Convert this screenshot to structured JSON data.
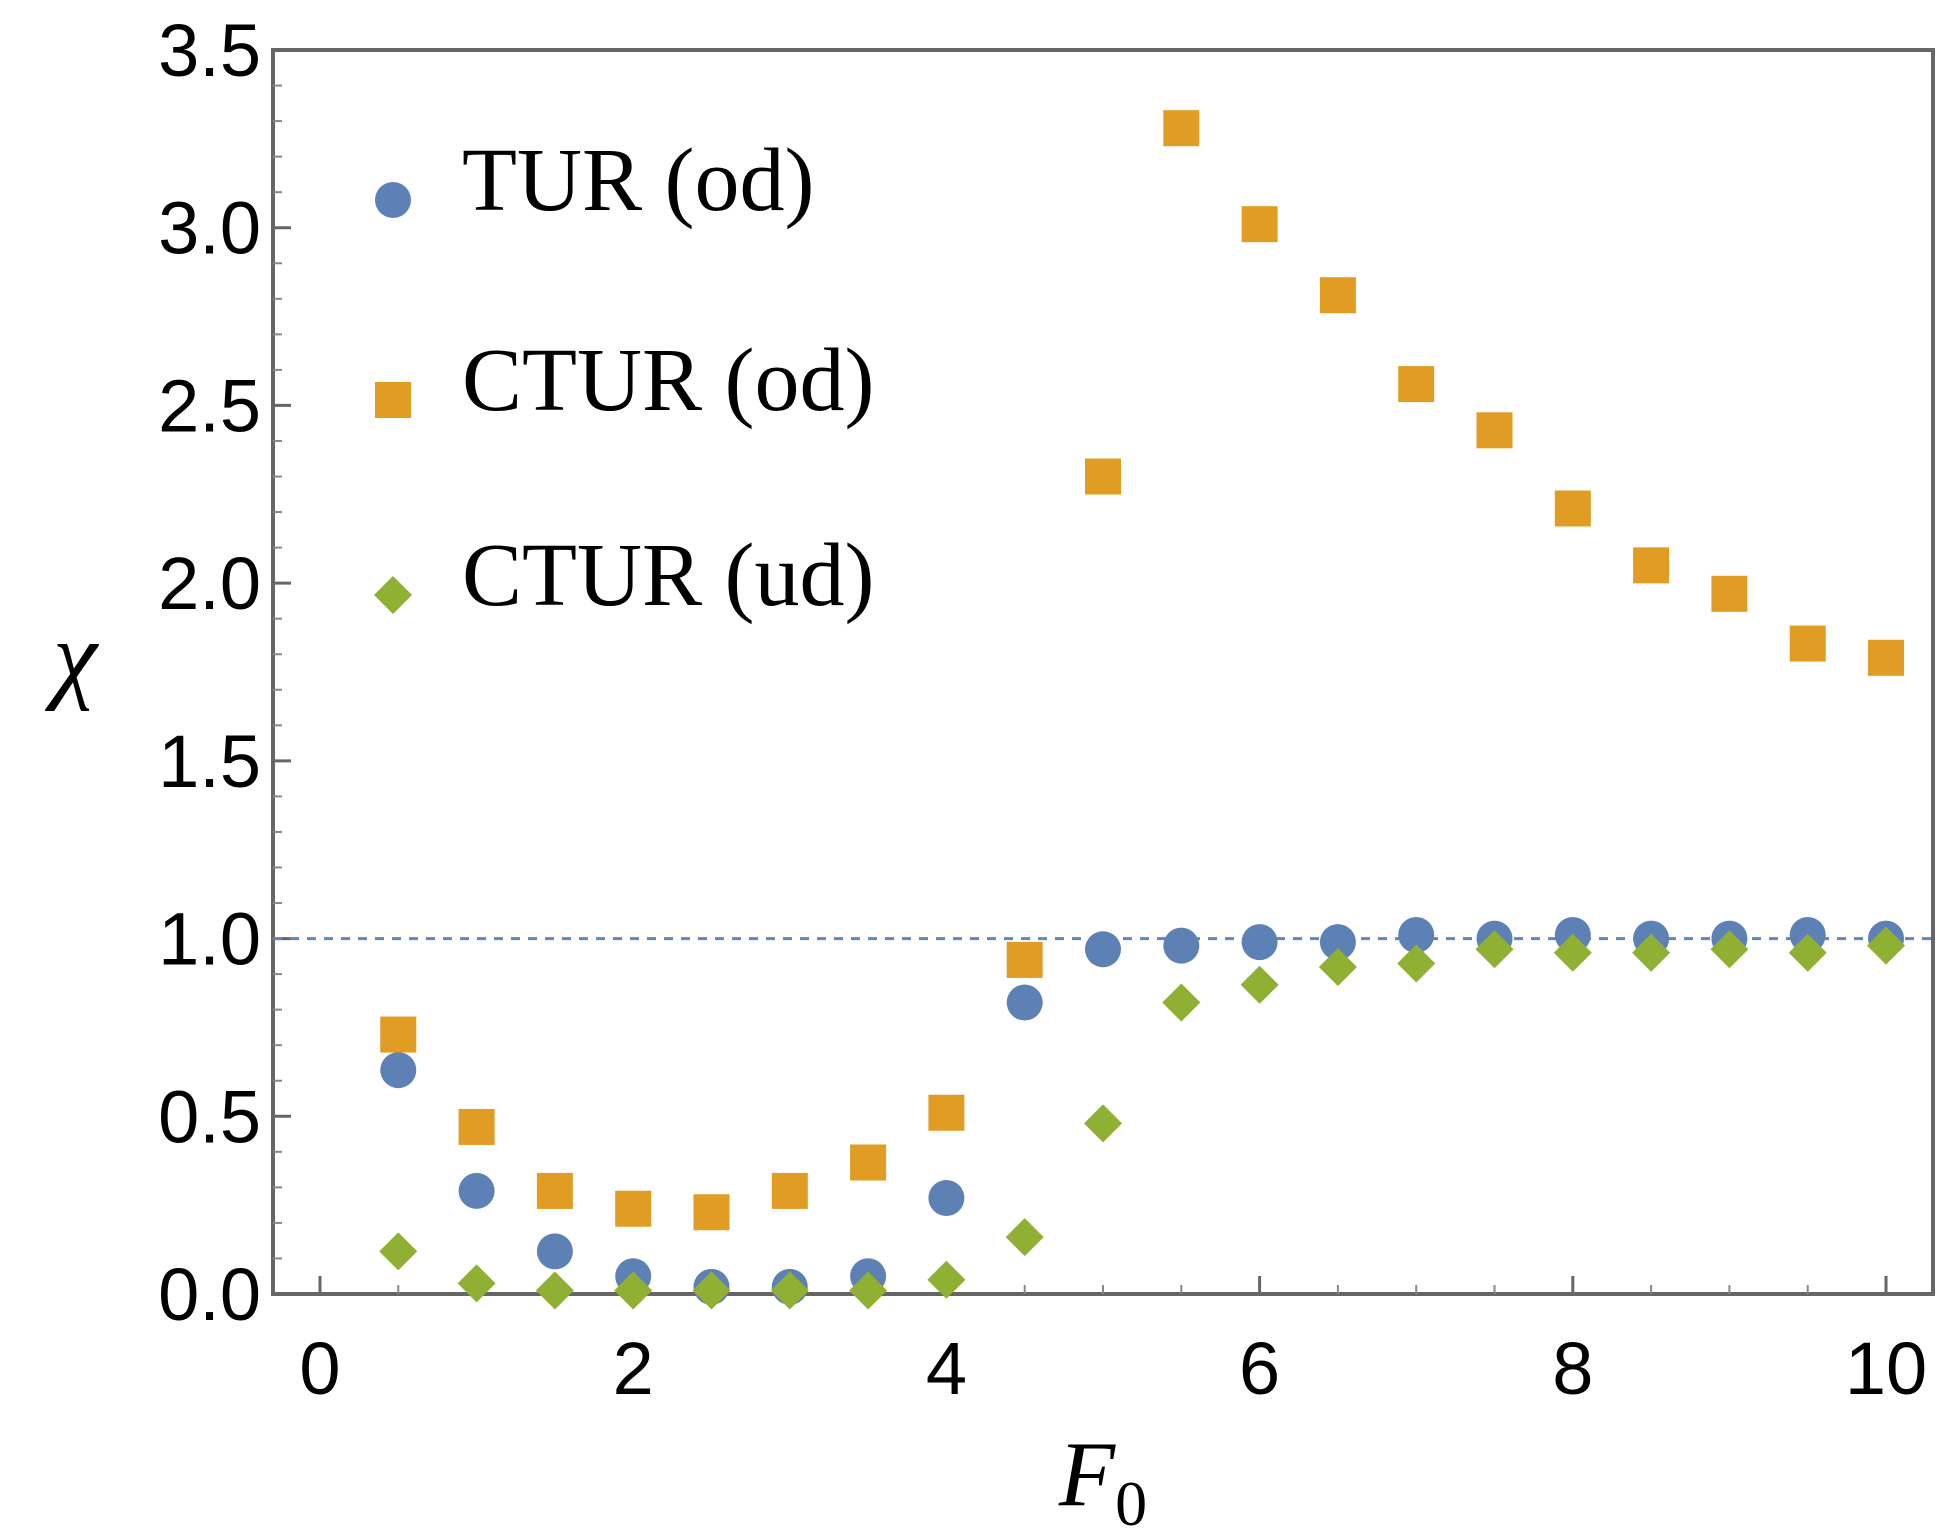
{
  "chart_data": {
    "type": "scatter",
    "title": "",
    "xlabel": "F",
    "xlabel_subscript": "0",
    "ylabel": "χ",
    "xlim": [
      -0.3,
      10.3
    ],
    "ylim": [
      0,
      3.5
    ],
    "x_ticks": [
      0,
      2,
      4,
      6,
      8,
      10
    ],
    "x_tick_labels": [
      "0",
      "2",
      "4",
      "6",
      "8",
      "10"
    ],
    "y_ticks": [
      0,
      0.5,
      1,
      1.5,
      2,
      2.5,
      3,
      3.5
    ],
    "y_tick_labels": [
      "0.0",
      "0.5",
      "1.0",
      "1.5",
      "2.0",
      "2.5",
      "3.0",
      "3.5"
    ],
    "grid": false,
    "legend_position": "top-left",
    "reference_line": {
      "y": 1.0,
      "style": "dashed",
      "color": "#5f87b8"
    },
    "x": [
      0.5,
      1.0,
      1.5,
      2.0,
      2.5,
      3.0,
      3.5,
      4.0,
      4.5,
      5.0,
      5.5,
      6.0,
      6.5,
      7.0,
      7.5,
      8.0,
      8.5,
      9.0,
      9.5,
      10.0
    ],
    "series": [
      {
        "name": "TUR (od)",
        "marker": "circle",
        "color": "#5e81b5",
        "values": [
          0.63,
          0.29,
          0.12,
          0.05,
          0.02,
          0.02,
          0.05,
          0.27,
          0.82,
          0.97,
          0.98,
          0.99,
          0.99,
          1.01,
          1.0,
          1.01,
          1.0,
          1.0,
          1.01,
          1.0
        ]
      },
      {
        "name": "CTUR (od)",
        "marker": "square",
        "color": "#e19c24",
        "values": [
          0.73,
          0.47,
          0.29,
          0.24,
          0.23,
          0.29,
          0.37,
          0.51,
          0.94,
          2.3,
          3.28,
          3.01,
          2.81,
          2.56,
          2.43,
          2.21,
          2.05,
          1.97,
          1.83,
          1.79
        ]
      },
      {
        "name": "CTUR (ud)",
        "marker": "diamond",
        "color": "#8fb032",
        "values": [
          0.12,
          0.03,
          0.01,
          0.01,
          0.01,
          0.01,
          0.01,
          0.04,
          0.16,
          0.48,
          0.82,
          0.87,
          0.92,
          0.93,
          0.97,
          0.96,
          0.96,
          0.97,
          0.96,
          0.98
        ]
      }
    ]
  }
}
